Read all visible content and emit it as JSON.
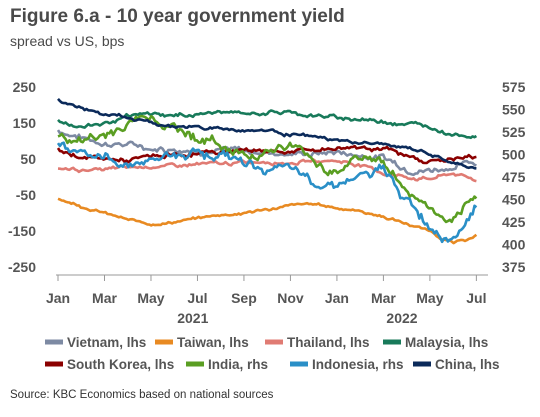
{
  "chart_data": {
    "type": "line",
    "title": "Figure 6.a - 10 year government yield",
    "subtitle": "spread vs US, bps",
    "source": "Source: KBC Economics based on national sources",
    "x_start": "2021-01",
    "x_end": "2022-07",
    "x_tick_labels": [
      "Jan",
      "Mar",
      "May",
      "Jul",
      "Sep",
      "Nov",
      "Jan",
      "Mar",
      "May",
      "Jul"
    ],
    "x_year_labels": [
      "2021",
      "2022"
    ],
    "y_left": {
      "ylim": [
        -250,
        250
      ],
      "ticks": [
        "250",
        "150",
        "50",
        "-50",
        "-150",
        "-250"
      ]
    },
    "y_right": {
      "ylim": [
        375,
        575
      ],
      "ticks": [
        "575",
        "550",
        "525",
        "500",
        "475",
        "450",
        "425",
        "400",
        "375"
      ]
    },
    "legend": {
      "row1": [
        "Vietnam, lhs",
        "Taiwan, lhs",
        "Thailand, lhs",
        "Malaysia, lhs"
      ],
      "row2": [
        "South Korea, lhs",
        "India, rhs",
        "Indonesia, rhs",
        "China, lhs"
      ]
    },
    "series": [
      {
        "name": "Vietnam, lhs",
        "axis": "left",
        "color": "#7d8aa3",
        "x": [
          0,
          1,
          2,
          3,
          4,
          5,
          6,
          7,
          8,
          9,
          10,
          11,
          12,
          13,
          14,
          15,
          16,
          17,
          18
        ],
        "values": [
          130,
          110,
          95,
          90,
          80,
          80,
          75,
          75,
          70,
          70,
          65,
          65,
          70,
          60,
          55,
          25,
          20,
          30,
          40
        ]
      },
      {
        "name": "Taiwan, lhs",
        "axis": "left",
        "color": "#e88a22",
        "x": [
          0,
          1,
          2,
          3,
          4,
          5,
          6,
          7,
          8,
          9,
          10,
          11,
          12,
          13,
          14,
          15,
          16,
          17,
          18
        ],
        "values": [
          -60,
          -80,
          -100,
          -120,
          -130,
          -125,
          -115,
          -105,
          -100,
          -90,
          -80,
          -75,
          -85,
          -95,
          -110,
          -130,
          -150,
          -185,
          -165
        ]
      },
      {
        "name": "Thailand, lhs",
        "axis": "left",
        "color": "#e07b73",
        "x": [
          0,
          1,
          2,
          3,
          4,
          5,
          6,
          7,
          8,
          9,
          10,
          11,
          12,
          13,
          14,
          15,
          16,
          17,
          18
        ],
        "values": [
          25,
          20,
          20,
          25,
          30,
          30,
          35,
          35,
          40,
          45,
          40,
          45,
          45,
          35,
          10,
          0,
          -5,
          10,
          -10
        ]
      },
      {
        "name": "Malaysia, lhs",
        "axis": "left",
        "color": "#187a5a",
        "x": [
          0,
          1,
          2,
          3,
          4,
          5,
          6,
          7,
          8,
          9,
          10,
          11,
          12,
          13,
          14,
          15,
          16,
          17,
          18
        ],
        "values": [
          155,
          140,
          150,
          165,
          175,
          170,
          175,
          180,
          175,
          180,
          180,
          170,
          165,
          160,
          155,
          150,
          140,
          120,
          115
        ]
      },
      {
        "name": "South Korea, lhs",
        "axis": "left",
        "color": "#8b0000",
        "x": [
          0,
          1,
          2,
          3,
          4,
          5,
          6,
          7,
          8,
          9,
          10,
          11,
          12,
          13,
          14,
          15,
          16,
          17,
          18
        ],
        "values": [
          75,
          55,
          50,
          45,
          55,
          60,
          65,
          70,
          75,
          75,
          70,
          75,
          80,
          85,
          80,
          55,
          45,
          50,
          55
        ]
      },
      {
        "name": "India, rhs",
        "axis": "right",
        "color": "#5a9e22",
        "x": [
          0,
          1,
          2,
          3,
          4,
          5,
          6,
          7,
          8,
          9,
          10,
          11,
          12,
          13,
          14,
          15,
          16,
          17,
          18
        ],
        "values": [
          520,
          515,
          520,
          535,
          545,
          530,
          520,
          510,
          500,
          505,
          510,
          495,
          480,
          500,
          490,
          460,
          440,
          420,
          450
        ]
      },
      {
        "name": "Indonesia, rhs",
        "axis": "right",
        "color": "#2a8fc7",
        "x": [
          0,
          1,
          2,
          3,
          4,
          5,
          6,
          7,
          8,
          9,
          10,
          11,
          12,
          13,
          14,
          15,
          16,
          17,
          18
        ],
        "values": [
          515,
          505,
          495,
          490,
          495,
          500,
          505,
          500,
          490,
          485,
          480,
          470,
          470,
          475,
          480,
          450,
          420,
          410,
          445
        ]
      },
      {
        "name": "China, lhs",
        "axis": "left",
        "color": "#0b2a5a",
        "x": [
          0,
          1,
          2,
          3,
          4,
          5,
          6,
          7,
          8,
          9,
          10,
          11,
          12,
          13,
          14,
          15,
          16,
          17,
          18
        ],
        "values": [
          215,
          190,
          175,
          165,
          150,
          140,
          140,
          135,
          130,
          130,
          120,
          110,
          100,
          95,
          90,
          80,
          65,
          35,
          25
        ]
      }
    ]
  }
}
